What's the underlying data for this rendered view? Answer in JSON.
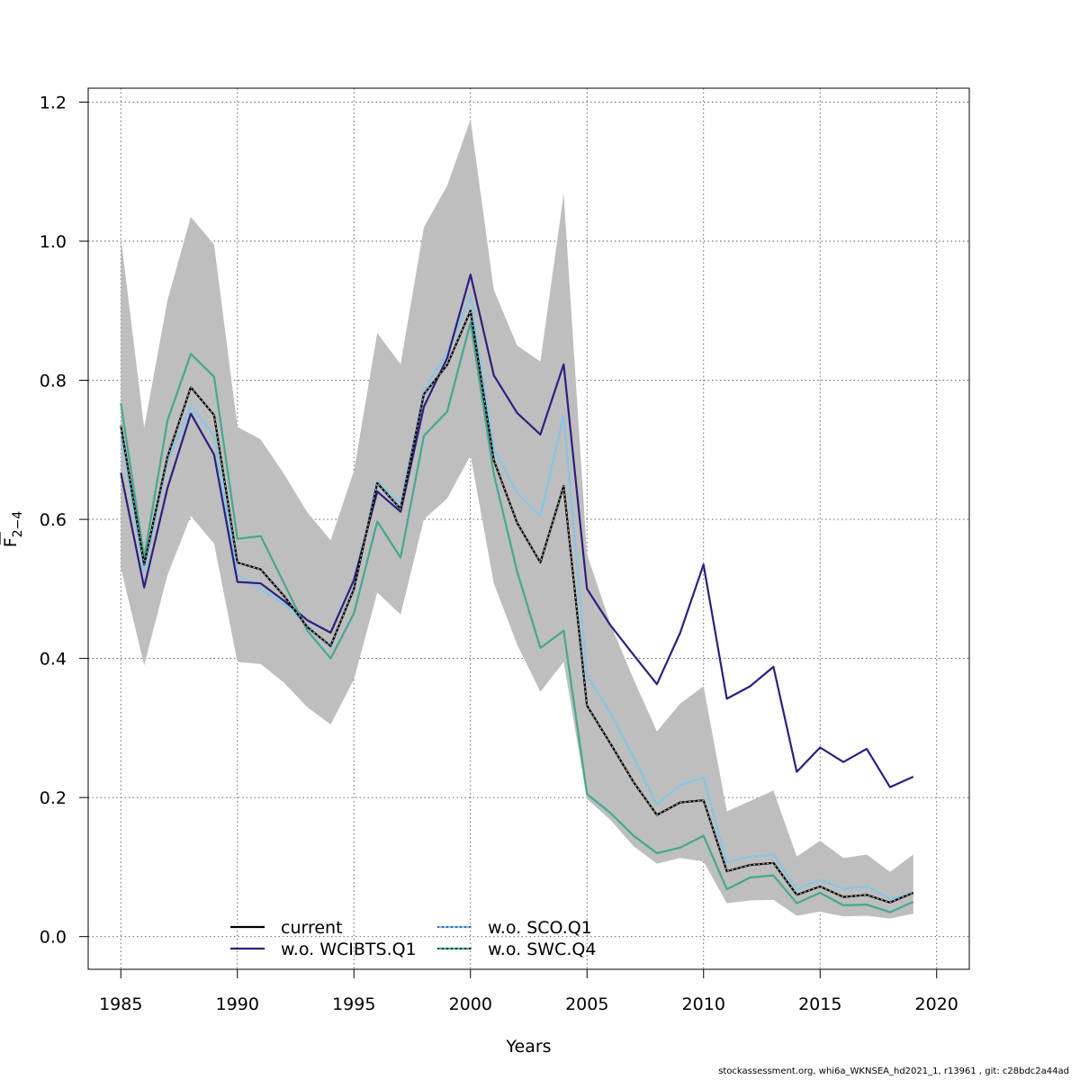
{
  "chart_data": {
    "type": "line",
    "title": "",
    "xlabel": "Years",
    "ylabel_main": "F",
    "ylabel_sub": "2−4",
    "xlim": [
      1983.6,
      2021.4
    ],
    "ylim": [
      -0.047,
      1.22
    ],
    "xticks": [
      1985,
      1990,
      1995,
      2000,
      2005,
      2010,
      2015,
      2020
    ],
    "yticks": [
      0.0,
      0.2,
      0.4,
      0.6,
      0.8,
      1.0,
      1.2
    ],
    "ytick_labels": [
      "0.0",
      "0.2",
      "0.4",
      "0.6",
      "0.8",
      "1.0",
      "1.2"
    ],
    "grid": true,
    "legend_position": "bottom-center",
    "x": [
      1985,
      1986,
      1987,
      1988,
      1989,
      1990,
      1991,
      1992,
      1993,
      1994,
      1995,
      1996,
      1997,
      1998,
      1999,
      2000,
      2001,
      2002,
      2003,
      2004,
      2005,
      2006,
      2007,
      2008,
      2009,
      2010,
      2011,
      2012,
      2013,
      2014,
      2015,
      2016,
      2017,
      2018,
      2019
    ],
    "confidence_band": {
      "color": "#bebebe",
      "lower": [
        0.53,
        0.39,
        0.52,
        0.605,
        0.565,
        0.395,
        0.392,
        0.365,
        0.33,
        0.305,
        0.37,
        0.495,
        0.463,
        0.6,
        0.63,
        0.692,
        0.508,
        0.42,
        0.352,
        0.395,
        0.198,
        0.168,
        0.13,
        0.105,
        0.113,
        0.108,
        0.048,
        0.052,
        0.053,
        0.03,
        0.036,
        0.029,
        0.03,
        0.026,
        0.033
      ],
      "upper": [
        1.005,
        0.732,
        0.915,
        1.035,
        0.995,
        0.733,
        0.715,
        0.665,
        0.61,
        0.57,
        0.67,
        0.868,
        0.823,
        1.02,
        1.08,
        1.175,
        0.93,
        0.85,
        0.827,
        1.068,
        0.55,
        0.45,
        0.37,
        0.295,
        0.335,
        0.36,
        0.18,
        0.195,
        0.21,
        0.115,
        0.138,
        0.113,
        0.118,
        0.093,
        0.118
      ]
    },
    "series": [
      {
        "name": "current",
        "color": "#000000",
        "values": [
          0.735,
          0.535,
          0.69,
          0.79,
          0.75,
          0.538,
          0.528,
          0.49,
          0.445,
          0.418,
          0.5,
          0.652,
          0.615,
          0.78,
          0.822,
          0.9,
          0.685,
          0.595,
          0.538,
          0.648,
          0.332,
          0.278,
          0.222,
          0.175,
          0.193,
          0.196,
          0.094,
          0.103,
          0.106,
          0.06,
          0.072,
          0.057,
          0.06,
          0.049,
          0.063
        ]
      },
      {
        "name": "w.o. WCIBTS.Q1",
        "color": "#2c1f80",
        "values": [
          0.667,
          0.502,
          0.645,
          0.752,
          0.693,
          0.51,
          0.508,
          0.483,
          0.455,
          0.437,
          0.513,
          0.64,
          0.611,
          0.762,
          0.832,
          0.952,
          0.807,
          0.753,
          0.722,
          0.823,
          0.5,
          0.448,
          0.405,
          0.363,
          0.437,
          0.535,
          0.342,
          0.36,
          0.388,
          0.237,
          0.272,
          0.251,
          0.27,
          0.215,
          0.23
        ]
      },
      {
        "name": "w.o. SCO.Q1",
        "color": "#86c6e6",
        "values": [
          0.72,
          0.525,
          0.683,
          0.763,
          0.72,
          0.52,
          0.5,
          0.478,
          0.448,
          0.415,
          0.503,
          0.655,
          0.622,
          0.785,
          0.84,
          0.92,
          0.702,
          0.638,
          0.605,
          0.75,
          0.375,
          0.322,
          0.258,
          0.19,
          0.218,
          0.228,
          0.107,
          0.115,
          0.118,
          0.068,
          0.082,
          0.069,
          0.072,
          0.055,
          0.062
        ]
      },
      {
        "name": "w.o. SWC.Q4",
        "color": "#44a890",
        "values": [
          0.767,
          0.545,
          0.742,
          0.838,
          0.805,
          0.572,
          0.576,
          0.508,
          0.44,
          0.4,
          0.465,
          0.597,
          0.545,
          0.72,
          0.755,
          0.883,
          0.665,
          0.525,
          0.415,
          0.44,
          0.205,
          0.178,
          0.145,
          0.12,
          0.128,
          0.145,
          0.068,
          0.085,
          0.088,
          0.048,
          0.063,
          0.045,
          0.046,
          0.035,
          0.05
        ]
      }
    ]
  },
  "footer_text": "stockassessment.org, whi6a_WKNSEA_hd2021_1, r13961 , git: c28bdc2a44ad"
}
